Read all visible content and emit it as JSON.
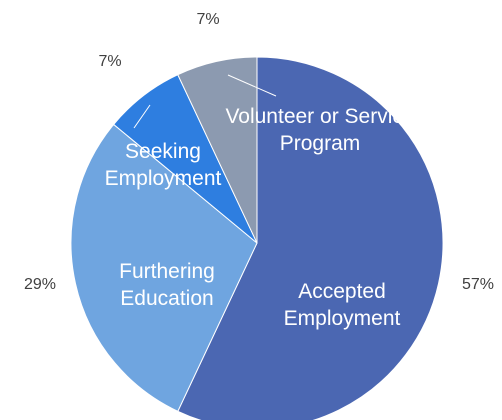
{
  "chart_data": {
    "type": "pie",
    "categories": [
      "Accepted Employment",
      "Furthering Education",
      "Seeking Employment",
      "Volunteer or Service Program"
    ],
    "values": [
      57,
      29,
      7,
      7
    ],
    "value_labels": [
      "57%",
      "29%",
      "7%",
      "7%"
    ],
    "colors": [
      "#4b67b2",
      "#6fa5e0",
      "#2e7ee0",
      "#8c9ab0"
    ]
  }
}
